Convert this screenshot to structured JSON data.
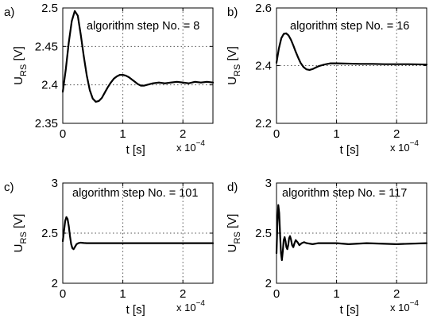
{
  "chart_data": [
    {
      "type": "line",
      "panel_label": "a)",
      "annotation": "algorithm step No. = 8",
      "xlabel": "t [s]",
      "ylabel_main": "U",
      "ylabel_sub": "RS",
      "ylabel_unit": " [V]",
      "x_multiplier_base": "x 10",
      "x_multiplier_exp": "−4",
      "xlim": [
        0,
        2.5
      ],
      "ylim": [
        2.35,
        2.5
      ],
      "xticks": [
        0,
        1,
        2
      ],
      "xtick_labels": [
        "0",
        "1",
        "2"
      ],
      "yticks": [
        2.35,
        2.4,
        2.45,
        2.5
      ],
      "ytick_labels": [
        "2.35",
        "2.4",
        "2.45",
        "2.5"
      ],
      "grid": "dotted",
      "series": [
        {
          "x": [
            0,
            0.05,
            0.1,
            0.15,
            0.2,
            0.25,
            0.3,
            0.35,
            0.4,
            0.45,
            0.5,
            0.55,
            0.6,
            0.65,
            0.7,
            0.75,
            0.8,
            0.85,
            0.9,
            0.95,
            1.0,
            1.05,
            1.1,
            1.15,
            1.2,
            1.25,
            1.3,
            1.35,
            1.4,
            1.45,
            1.5,
            1.6,
            1.7,
            1.8,
            1.9,
            2.0,
            2.1,
            2.2,
            2.3,
            2.4,
            2.5
          ],
          "y": [
            2.391,
            2.42,
            2.455,
            2.483,
            2.496,
            2.49,
            2.465,
            2.437,
            2.412,
            2.393,
            2.382,
            2.378,
            2.379,
            2.383,
            2.39,
            2.397,
            2.403,
            2.408,
            2.411,
            2.413,
            2.413,
            2.412,
            2.41,
            2.407,
            2.404,
            2.401,
            2.399,
            2.399,
            2.4,
            2.401,
            2.402,
            2.403,
            2.402,
            2.403,
            2.404,
            2.403,
            2.402,
            2.404,
            2.403,
            2.404,
            2.403
          ]
        }
      ]
    },
    {
      "type": "line",
      "panel_label": "b)",
      "annotation": "algorithm step No. = 16",
      "xlabel": "t [s]",
      "ylabel_main": "U",
      "ylabel_sub": "RS",
      "ylabel_unit": " [V]",
      "x_multiplier_base": "x 10",
      "x_multiplier_exp": "−4",
      "xlim": [
        0,
        2.5
      ],
      "ylim": [
        2.2,
        2.6
      ],
      "xticks": [
        0,
        1,
        2
      ],
      "xtick_labels": [
        "0",
        "1",
        "2"
      ],
      "yticks": [
        2.2,
        2.4,
        2.6
      ],
      "ytick_labels": [
        "2.2",
        "2.4",
        "2.6"
      ],
      "grid": "dotted",
      "series": [
        {
          "x": [
            0,
            0.04,
            0.08,
            0.12,
            0.16,
            0.2,
            0.24,
            0.28,
            0.32,
            0.36,
            0.4,
            0.45,
            0.5,
            0.55,
            0.6,
            0.65,
            0.7,
            0.8,
            0.9,
            1.0,
            1.2,
            1.4,
            1.6,
            1.8,
            2.0,
            2.2,
            2.5
          ],
          "y": [
            2.41,
            2.46,
            2.495,
            2.51,
            2.512,
            2.505,
            2.49,
            2.47,
            2.448,
            2.428,
            2.41,
            2.395,
            2.387,
            2.385,
            2.388,
            2.393,
            2.398,
            2.404,
            2.408,
            2.408,
            2.407,
            2.406,
            2.406,
            2.405,
            2.405,
            2.405,
            2.404
          ]
        }
      ]
    },
    {
      "type": "line",
      "panel_label": "c)",
      "annotation": "algorithm step No. = 101",
      "xlabel": "t [s]",
      "ylabel_main": "U",
      "ylabel_sub": "RS",
      "ylabel_unit": " [V]",
      "x_multiplier_base": "x 10",
      "x_multiplier_exp": "−4",
      "xlim": [
        0,
        2.5
      ],
      "ylim": [
        2,
        3
      ],
      "xticks": [
        0,
        1,
        2
      ],
      "xtick_labels": [
        "0",
        "1",
        "2"
      ],
      "yticks": [
        2,
        2.5,
        3
      ],
      "ytick_labels": [
        "2",
        "2.5",
        "3"
      ],
      "grid": "dotted",
      "series": [
        {
          "x": [
            0,
            0.02,
            0.04,
            0.06,
            0.08,
            0.1,
            0.12,
            0.14,
            0.16,
            0.18,
            0.2,
            0.23,
            0.26,
            0.3,
            0.35,
            0.4,
            0.5,
            0.7,
            1.0,
            1.5,
            2.0,
            2.5
          ],
          "y": [
            2.42,
            2.52,
            2.62,
            2.66,
            2.64,
            2.57,
            2.47,
            2.39,
            2.35,
            2.34,
            2.36,
            2.39,
            2.4,
            2.405,
            2.402,
            2.4,
            2.4,
            2.4,
            2.4,
            2.4,
            2.4,
            2.4
          ]
        }
      ]
    },
    {
      "type": "line",
      "panel_label": "d)",
      "annotation": "algorithm step No. = 117",
      "xlabel": "t [s]",
      "ylabel_main": "U",
      "ylabel_sub": "RS",
      "ylabel_unit": " [V]",
      "x_multiplier_base": "x 10",
      "x_multiplier_exp": "−4",
      "xlim": [
        0,
        2.5
      ],
      "ylim": [
        2,
        3
      ],
      "xticks": [
        0,
        1,
        2
      ],
      "xtick_labels": [
        "0",
        "1",
        "2"
      ],
      "yticks": [
        2,
        2.5,
        3
      ],
      "ytick_labels": [
        "2",
        "2.5",
        "3"
      ],
      "grid": "dotted",
      "series": [
        {
          "x": [
            0,
            0.015,
            0.03,
            0.045,
            0.06,
            0.075,
            0.09,
            0.105,
            0.12,
            0.135,
            0.15,
            0.165,
            0.18,
            0.195,
            0.21,
            0.225,
            0.24,
            0.26,
            0.28,
            0.3,
            0.32,
            0.35,
            0.38,
            0.42,
            0.46,
            0.5,
            0.6,
            0.7,
            0.8,
            1.0,
            1.2,
            1.5,
            2.0,
            2.5
          ],
          "y": [
            2.3,
            2.6,
            2.78,
            2.7,
            2.48,
            2.3,
            2.23,
            2.32,
            2.43,
            2.46,
            2.42,
            2.36,
            2.34,
            2.38,
            2.45,
            2.47,
            2.44,
            2.38,
            2.36,
            2.4,
            2.43,
            2.41,
            2.38,
            2.4,
            2.41,
            2.4,
            2.39,
            2.4,
            2.4,
            2.4,
            2.39,
            2.4,
            2.39,
            2.4
          ]
        }
      ]
    }
  ]
}
